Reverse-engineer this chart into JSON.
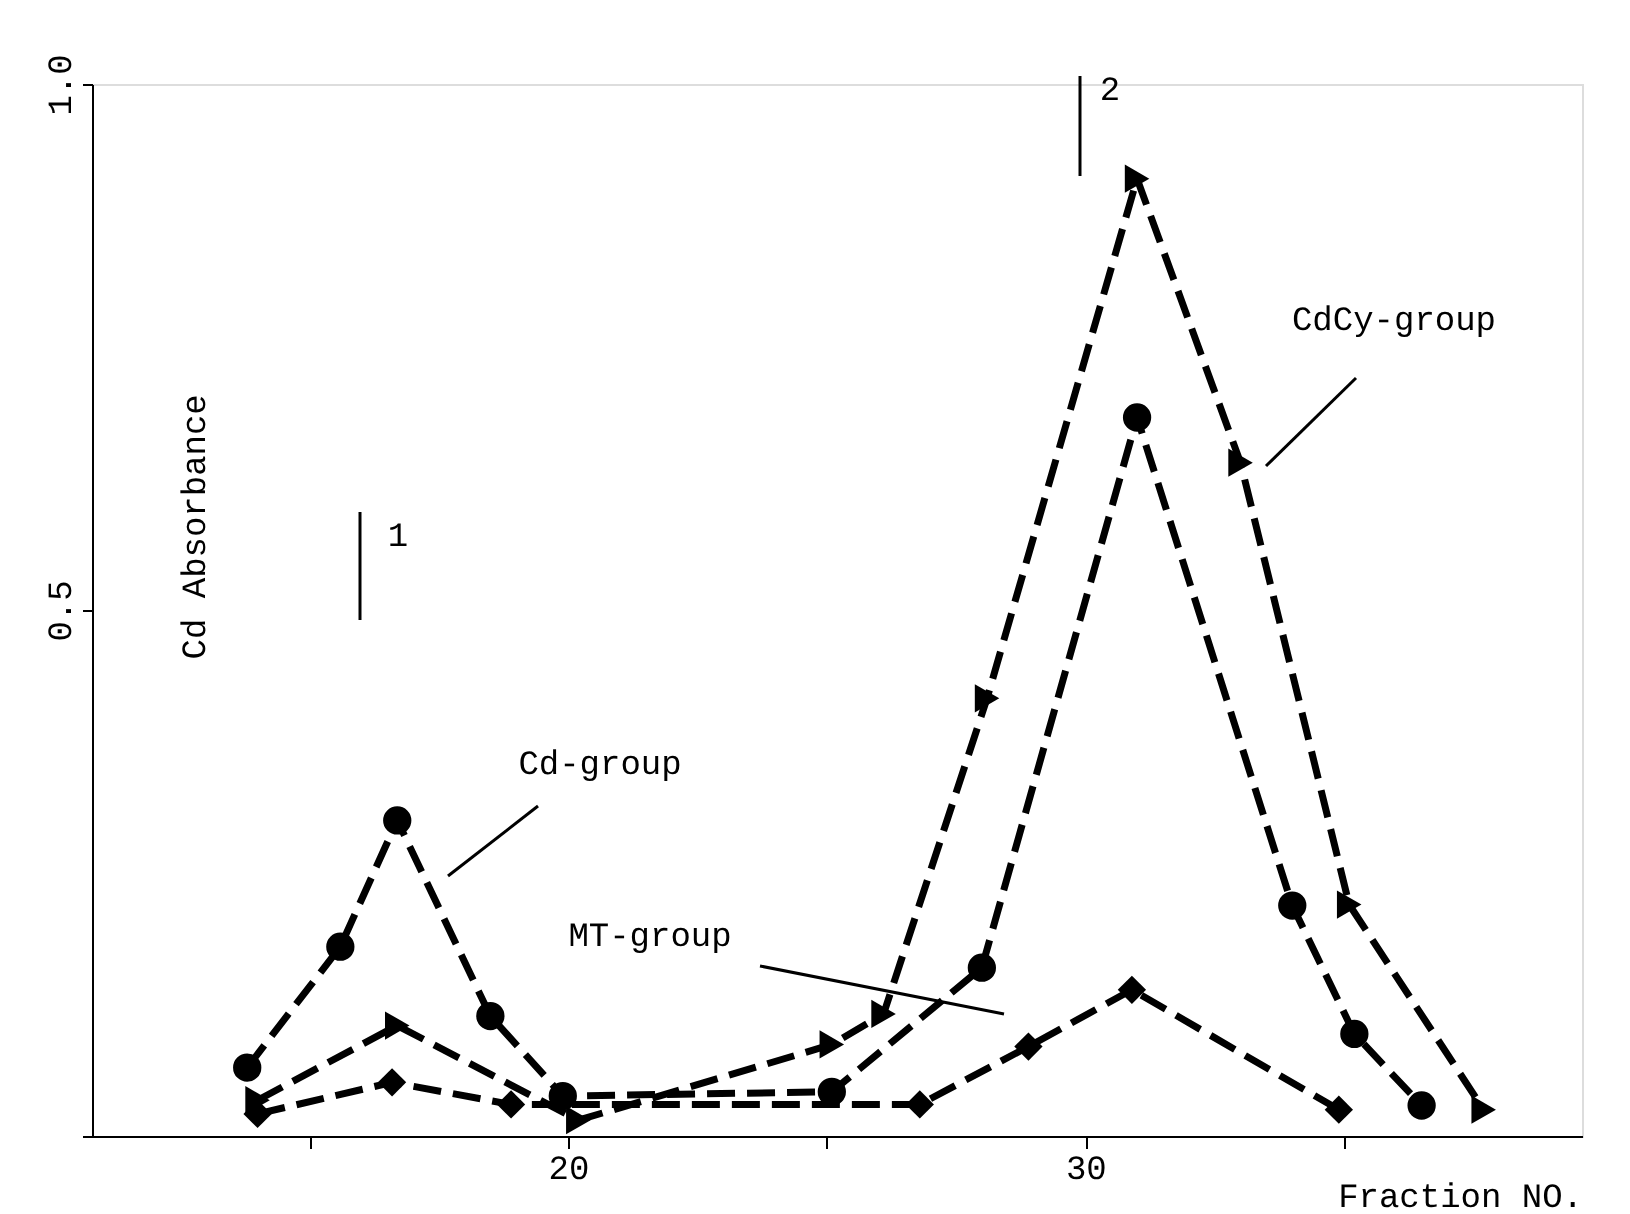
{
  "chart_data": {
    "type": "line",
    "xlabel": "Fraction NO.",
    "ylabel": "Cd Absorbance",
    "xlim": [
      10.8,
      39.6
    ],
    "ylim": [
      0,
      1.0
    ],
    "xticks": [
      {
        "value": 15,
        "label": null
      },
      20,
      {
        "value": 25,
        "label": null
      },
      30,
      {
        "value": 35,
        "label": null
      }
    ],
    "yticks": [
      {
        "value": 0,
        "label": null
      },
      {
        "value": 0.5,
        "label": "0.5"
      },
      {
        "value": 1.0,
        "label": "1.0"
      }
    ],
    "grid": false,
    "line_style": "dashed",
    "series": [
      {
        "color": "#000000",
        "marker": "circle",
        "x": [
          13.8,
          15.6,
          16.7,
          18.5,
          19.9,
          25.1,
          28.0,
          31.0,
          34.0,
          35.2,
          36.5
        ],
        "values": [
          0.065,
          0.18,
          0.3,
          0.114,
          0.038,
          0.042,
          0.16,
          0.683,
          0.219,
          0.097,
          0.029
        ]
      },
      {
        "color": "#000000",
        "marker": "triangle",
        "x": [
          14.0,
          16.7,
          20.2,
          25.1,
          26.1,
          28.1,
          31.0,
          33.0,
          35.1,
          37.7
        ],
        "values": [
          0.034,
          0.105,
          0.015,
          0.087,
          0.116,
          0.416,
          0.91,
          0.64,
          0.22,
          0.025
        ]
      },
      {
        "color": "#000000",
        "marker": "diamond",
        "x": [
          14.0,
          16.6,
          18.9,
          26.8,
          28.9,
          30.9,
          34.9
        ],
        "values": [
          0.021,
          0.051,
          0.03,
          0.03,
          0.085,
          0.139,
          0.025
        ]
      }
    ],
    "annotations": [
      "1",
      "2",
      "Cd-group",
      "CdCy-group",
      "MT-group"
    ]
  }
}
